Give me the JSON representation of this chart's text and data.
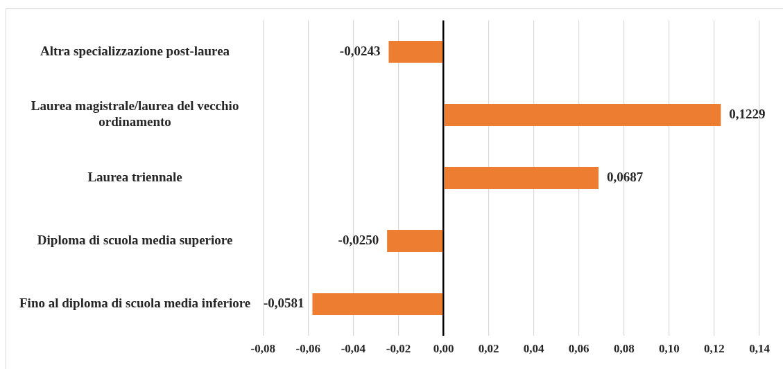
{
  "chart_data": {
    "type": "bar",
    "orientation": "horizontal",
    "categories": [
      "Altra specializzazione post-laurea",
      "Laurea magistrale/laurea del vecchio ordinamento",
      "Laurea triennale",
      "Diploma di scuola media superiore",
      "Fino al diploma di scuola media inferiore"
    ],
    "values": [
      -0.0243,
      0.1229,
      0.0687,
      -0.025,
      -0.0581
    ],
    "value_labels": [
      "-0,0243",
      "0,1229",
      "0,0687",
      "-0,0250",
      "-0,0581"
    ],
    "color": "#ed7d31",
    "xlim": [
      -0.08,
      0.14
    ],
    "xticks": [
      {
        "value": -0.08,
        "label": "-0,08"
      },
      {
        "value": -0.06,
        "label": "-0,06"
      },
      {
        "value": -0.04,
        "label": "-0,04"
      },
      {
        "value": -0.02,
        "label": "-0,02"
      },
      {
        "value": 0,
        "label": "0,00"
      },
      {
        "value": 0.02,
        "label": "0,02"
      },
      {
        "value": 0.04,
        "label": "0,04"
      },
      {
        "value": 0.06,
        "label": "0,06"
      },
      {
        "value": 0.08,
        "label": "0,08"
      },
      {
        "value": 0.1,
        "label": "0,10"
      },
      {
        "value": 0.12,
        "label": "0,12"
      },
      {
        "value": 0.14,
        "label": "0,14"
      }
    ],
    "grid": "x",
    "legend": false
  }
}
